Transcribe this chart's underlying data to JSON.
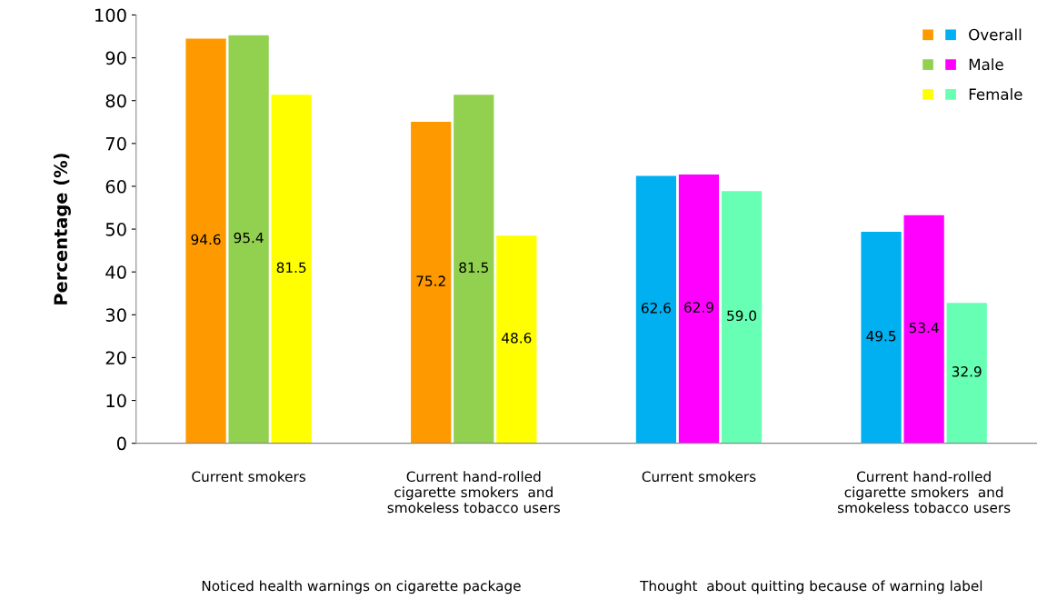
{
  "chart_data": {
    "type": "bar",
    "ylabel": "Percentage (%)",
    "categories": [
      "Current smokers",
      "Current hand-rolled\ncigarette smokers  and\nsmokeless tobacco users",
      "Current smokers",
      "Current hand-rolled\ncigarette smokers  and\nsmokeless tobacco users"
    ],
    "series": [
      {
        "name": "Overall",
        "colors": [
          "#ff9900",
          "#ff9900",
          "#00b0f0",
          "#00b0f0"
        ],
        "values": [
          94.6,
          75.2,
          62.6,
          49.5
        ],
        "value_labels": [
          "94.6",
          "75.2",
          "62.6",
          "49.5"
        ]
      },
      {
        "name": "Male",
        "colors": [
          "#92d050",
          "#92d050",
          "#ff00ff",
          "#ff00ff"
        ],
        "values": [
          95.4,
          81.5,
          62.9,
          53.4
        ],
        "value_labels": [
          "95.4",
          "81.5",
          "62.9",
          "53.4"
        ]
      },
      {
        "name": "Female",
        "colors": [
          "#ffff00",
          "#ffff00",
          "#66ffb3",
          "#66ffb3"
        ],
        "values": [
          81.5,
          48.6,
          59.0,
          32.9
        ],
        "value_labels": [
          "81.5",
          "48.6",
          "59.0",
          "32.9"
        ]
      }
    ],
    "ylim": [
      0,
      100
    ],
    "yticks": [
      0,
      10,
      20,
      30,
      40,
      50,
      60,
      70,
      80,
      90,
      100
    ],
    "grid": false,
    "legend": "top right",
    "annotations": [
      "Noticed health warnings on cigarette package",
      "Thought  about quitting because of warning label"
    ]
  }
}
